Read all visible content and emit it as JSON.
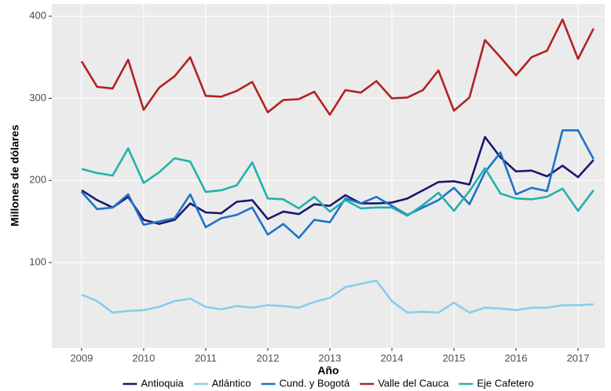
{
  "chart_data": {
    "type": "line",
    "x_label": "Año",
    "y_label": "Millones de dólares",
    "x": [
      2009,
      2009.25,
      2009.5,
      2009.75,
      2010,
      2010.25,
      2010.5,
      2010.75,
      2011,
      2011.25,
      2011.5,
      2011.75,
      2012,
      2012.25,
      2012.5,
      2012.75,
      2013,
      2013.25,
      2013.5,
      2013.75,
      2014,
      2014.25,
      2014.5,
      2014.75,
      2015,
      2015.25,
      2015.5,
      2015.75,
      2016,
      2016.25,
      2016.5,
      2016.75,
      2017,
      2017.25
    ],
    "series": [
      {
        "name": "Antioquia",
        "color": "#191970",
        "values": [
          188,
          176,
          167,
          180,
          152,
          147,
          152,
          172,
          161,
          160,
          174,
          176,
          153,
          162,
          159,
          171,
          169,
          182,
          172,
          172,
          173,
          178,
          188,
          198,
          199,
          195,
          253,
          228,
          211,
          212,
          205,
          218,
          204,
          225
        ]
      },
      {
        "name": "Atlántico",
        "color": "#87ceeb",
        "values": [
          61,
          53,
          39,
          41,
          42,
          46,
          53,
          56,
          46,
          43,
          47,
          45,
          48,
          47,
          45,
          52,
          57,
          70,
          74,
          78,
          53,
          39,
          40,
          39,
          51,
          39,
          45,
          44,
          42,
          45,
          45,
          48,
          48,
          49
        ]
      },
      {
        "name": "Cund. y Bogotá",
        "color": "#1e72c8",
        "values": [
          186,
          165,
          167,
          183,
          146,
          150,
          154,
          183,
          143,
          154,
          158,
          167,
          134,
          147,
          130,
          152,
          149,
          178,
          172,
          180,
          169,
          158,
          167,
          176,
          191,
          171,
          210,
          234,
          183,
          191,
          187,
          261,
          261,
          226
        ]
      },
      {
        "name": "Valle del Cauca",
        "color": "#b22222",
        "values": [
          345,
          314,
          312,
          347,
          286,
          313,
          327,
          350,
          303,
          302,
          309,
          320,
          283,
          298,
          299,
          308,
          280,
          310,
          307,
          321,
          300,
          301,
          310,
          334,
          285,
          301,
          371,
          350,
          328,
          350,
          358,
          396,
          348,
          385
        ]
      },
      {
        "name": "Eje Cafetero",
        "color": "#20b2aa",
        "values": [
          214,
          209,
          206,
          239,
          197,
          210,
          227,
          223,
          186,
          188,
          194,
          222,
          178,
          177,
          166,
          180,
          162,
          176,
          166,
          167,
          167,
          157,
          170,
          185,
          163,
          187,
          215,
          184,
          178,
          177,
          180,
          190,
          163,
          188
        ]
      }
    ],
    "xlim": [
      2008.52,
      2017.43
    ],
    "xticks": [
      2009,
      2010,
      2011,
      2012,
      2013,
      2014,
      2015,
      2016,
      2017
    ],
    "ylim": [
      -4,
      415
    ],
    "yticks": [
      100,
      200,
      300,
      400
    ],
    "grid": true,
    "legend": "bottom"
  }
}
